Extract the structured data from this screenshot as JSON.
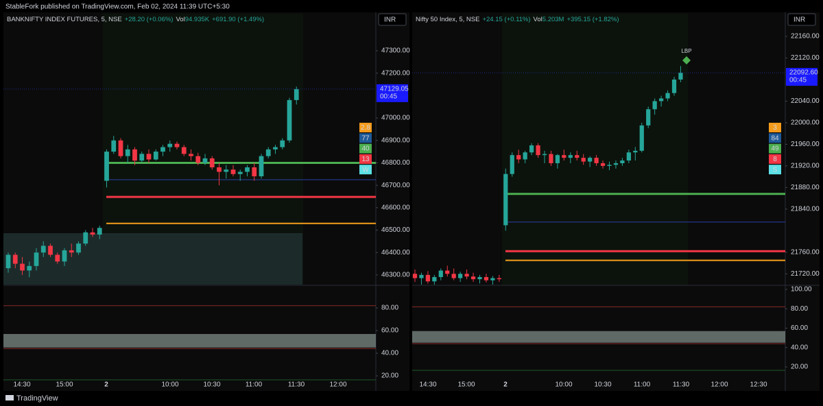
{
  "header": {
    "text": "StableFork published on TradingView.com, Feb 02, 2024 11:39 UTC+5:30"
  },
  "footer": {
    "brand": "TradingView"
  },
  "chart_data": [
    {
      "type": "candlestick",
      "title": "BANKNIFTY INDEX FUTURES, 5, NSE",
      "change": "+28.20 (+0.06%)",
      "volume_label": "Vol",
      "volume": "94.935K",
      "day_change": "+691.90 (+1.49%)",
      "currency": "INR",
      "ylim": [
        46257,
        47465
      ],
      "yticks": [
        {
          "value": 47300,
          "label": "47300.00"
        },
        {
          "value": 47200,
          "label": "47200.00"
        },
        {
          "value": 47000,
          "label": "47000.00"
        },
        {
          "value": 46900,
          "label": "46900.00"
        },
        {
          "value": 46800,
          "label": "46800.00"
        },
        {
          "value": 46700,
          "label": "46700.00"
        },
        {
          "value": 46600,
          "label": "46600.00"
        },
        {
          "value": 46500,
          "label": "46500.00"
        },
        {
          "value": 46400,
          "label": "46400.00"
        },
        {
          "value": 46300,
          "label": "46300.00"
        }
      ],
      "candles": {
        "open": [
          46330,
          46390,
          46350,
          46320,
          46340,
          46400,
          46430,
          46390,
          46360,
          46410,
          46400,
          46440,
          46490,
          46480,
          46720,
          46850,
          46900,
          46830,
          46860,
          46810,
          46840,
          46815,
          46850,
          46870,
          46885,
          46870,
          46840,
          46830,
          46800,
          46820,
          46780,
          46760,
          46770,
          46750,
          46760,
          46780,
          46740,
          46830,
          46860,
          46870,
          46900,
          47080
        ],
        "high": [
          46400,
          46400,
          46380,
          46360,
          46420,
          46450,
          46440,
          46400,
          46420,
          46440,
          46450,
          46500,
          46510,
          46520,
          46860,
          46920,
          46910,
          46880,
          46870,
          46850,
          46860,
          46860,
          46880,
          46900,
          46895,
          46880,
          46860,
          46845,
          46840,
          46830,
          46800,
          46790,
          46790,
          46770,
          46790,
          46800,
          46840,
          46870,
          46880,
          46910,
          47090,
          47140
        ],
        "low": [
          46310,
          46330,
          46300,
          46290,
          46320,
          46380,
          46380,
          46350,
          46340,
          46380,
          46390,
          46430,
          46470,
          46460,
          46690,
          46840,
          46820,
          46800,
          46790,
          46800,
          46800,
          46810,
          46830,
          46850,
          46860,
          46830,
          46810,
          46790,
          46790,
          46770,
          46700,
          46730,
          46740,
          46720,
          46740,
          46720,
          46730,
          46820,
          46840,
          46860,
          46890,
          47060
        ],
        "close": [
          46390,
          46350,
          46320,
          46340,
          46400,
          46430,
          46390,
          46360,
          46410,
          46400,
          46440,
          46490,
          46480,
          46510,
          46850,
          46900,
          46830,
          46860,
          46810,
          46840,
          46815,
          46850,
          46870,
          46885,
          46870,
          46840,
          46830,
          46800,
          46820,
          46780,
          46760,
          46770,
          46750,
          46760,
          46780,
          46740,
          46830,
          46860,
          46870,
          46900,
          47080,
          47129.05
        ]
      },
      "up_color": "#26a69a",
      "down_color": "#f23645",
      "xlabels": [
        "14:30",
        "15:00",
        "2",
        "10:00",
        "10:30",
        "11:00",
        "11:30",
        "12:00"
      ],
      "last_price": {
        "value": 47129.05,
        "label": "47129.05"
      },
      "countdown": "00:45",
      "levels": [
        {
          "value": 46800,
          "color": "#4caf50"
        },
        {
          "value": 46725,
          "color": "#2a3fa8"
        },
        {
          "value": 46648,
          "color": "#f23645"
        },
        {
          "value": 46530,
          "color": "#f59f1b"
        }
      ],
      "badges": [
        {
          "label": "2.8",
          "color": "#f59b1b"
        },
        {
          "label": "77",
          "color": "#1e5a99"
        },
        {
          "label": "40",
          "color": "#4caf50"
        },
        {
          "label": "13",
          "color": "#f23645"
        },
        {
          "label": "W",
          "color": "#5ce1e6"
        }
      ],
      "osc_ylim": [
        17.6,
        98.8
      ],
      "osc_yticks": [
        {
          "value": 80,
          "label": "80.00"
        },
        {
          "value": 60,
          "label": "60.00"
        },
        {
          "value": 40,
          "label": "40.00"
        },
        {
          "value": 20,
          "label": "20.00"
        }
      ]
    },
    {
      "type": "candlestick",
      "title": "Nifty 50 Index, 5, NSE",
      "change": "+24.15 (+0.11%)",
      "volume_label": "Vol",
      "volume": "5.203M",
      "day_change": "+395.15 (+1.82%)",
      "currency": "INR",
      "ylim": [
        21700,
        22202
      ],
      "yticks": [
        {
          "value": 22160,
          "label": "22160.00"
        },
        {
          "value": 22120,
          "label": "22120.00"
        },
        {
          "value": 22040,
          "label": "22040.00"
        },
        {
          "value": 22000,
          "label": "22000.00"
        },
        {
          "value": 21960,
          "label": "21960.00"
        },
        {
          "value": 21920,
          "label": "21920.00"
        },
        {
          "value": 21880,
          "label": "21880.00"
        },
        {
          "value": 21840,
          "label": "21840.00"
        },
        {
          "value": 21760,
          "label": "21760.00"
        },
        {
          "value": 21720,
          "label": "21720.00"
        }
      ],
      "candles": {
        "open": [
          21720,
          21712,
          21718,
          21706,
          21714,
          21726,
          21720,
          21712,
          21720,
          21715,
          21710,
          21714,
          21708,
          21712,
          21810,
          21905,
          21940,
          21932,
          21945,
          21958,
          21940,
          21942,
          21925,
          21940,
          21935,
          21940,
          21935,
          21928,
          21935,
          21925,
          21920,
          21922,
          21925,
          21930,
          21945,
          21948,
          21995,
          22025,
          22040,
          22045,
          22055,
          22080
        ],
        "high": [
          21728,
          21722,
          21725,
          21718,
          21730,
          21735,
          21730,
          21724,
          21728,
          21722,
          21718,
          21720,
          21716,
          21718,
          21915,
          21945,
          21950,
          21948,
          21962,
          21962,
          21948,
          21948,
          21942,
          21950,
          21945,
          21948,
          21942,
          21938,
          21940,
          21930,
          21928,
          21930,
          21935,
          21950,
          21955,
          22000,
          22030,
          22045,
          22050,
          22060,
          22085,
          22105
        ],
        "low": [
          21705,
          21700,
          21702,
          21700,
          21708,
          21715,
          21708,
          21705,
          21710,
          21705,
          21702,
          21704,
          21700,
          21705,
          21800,
          21900,
          21925,
          21925,
          21940,
          21935,
          21925,
          21920,
          21915,
          21930,
          21925,
          21930,
          21922,
          21918,
          21920,
          21915,
          21912,
          21915,
          21920,
          21925,
          21930,
          21945,
          21990,
          22015,
          22030,
          22040,
          22050,
          22075
        ],
        "close": [
          21712,
          21718,
          21706,
          21714,
          21726,
          21720,
          21712,
          21720,
          21715,
          21710,
          21714,
          21708,
          21712,
          21710,
          21905,
          21940,
          21932,
          21945,
          21958,
          21940,
          21942,
          21925,
          21940,
          21935,
          21940,
          21935,
          21928,
          21935,
          21925,
          21920,
          21922,
          21925,
          21930,
          21945,
          21948,
          21995,
          22025,
          22040,
          22045,
          22055,
          22080,
          22092.6
        ]
      },
      "up_color": "#26a69a",
      "down_color": "#f23645",
      "xlabels": [
        "14:30",
        "15:00",
        "2",
        "10:00",
        "10:30",
        "11:00",
        "11:30",
        "12:00",
        "12:30"
      ],
      "last_price": {
        "value": 22092.6,
        "label": "22092.60"
      },
      "countdown": "00:45",
      "levels": [
        {
          "value": 21868,
          "color": "#4caf50"
        },
        {
          "value": 21816,
          "color": "#2a3fa8"
        },
        {
          "value": 21762,
          "color": "#f23645"
        },
        {
          "value": 21745,
          "color": "#f59f1b"
        }
      ],
      "badges": [
        {
          "label": "3",
          "color": "#f59b1b"
        },
        {
          "label": "84",
          "color": "#1e5a99"
        },
        {
          "label": "49",
          "color": "#4caf50"
        },
        {
          "label": "8",
          "color": "#f23645"
        },
        {
          "label": "S",
          "color": "#5ce1e6"
        }
      ],
      "signal": "LBP",
      "osc_ylim": [
        8,
        102.8
      ],
      "osc_yticks": [
        {
          "value": 100,
          "label": "100.00"
        },
        {
          "value": 80,
          "label": "80.00"
        },
        {
          "value": 60,
          "label": "60.00"
        },
        {
          "value": 40,
          "label": "40.00"
        },
        {
          "value": 20,
          "label": "20.00"
        }
      ]
    }
  ]
}
